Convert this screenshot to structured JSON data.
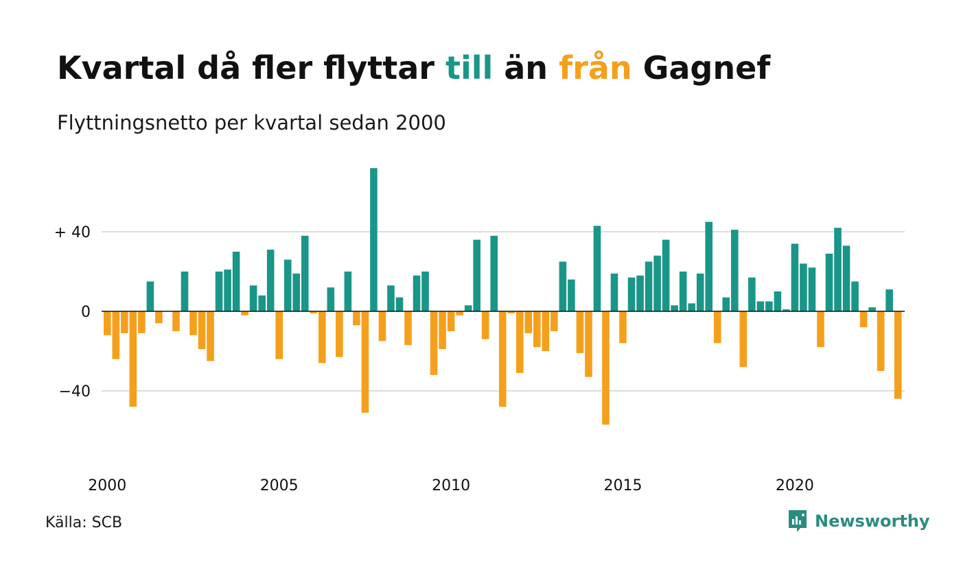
{
  "title": {
    "part1": "Kvartal då fler flyttar ",
    "highlight_in": "till",
    "part2": " än ",
    "highlight_out": "från",
    "part3": " Gagnef"
  },
  "subtitle": "Flyttningsnetto per kvartal sedan 2000",
  "source": "Källa: SCB",
  "brand": "Newsworthy",
  "colors": {
    "positive": "#1a9688",
    "negative": "#f5a01d",
    "grid": "#dddddd",
    "zero_line": "#111111",
    "brand": "#2a8c80"
  },
  "chart_data": {
    "type": "bar",
    "xlabel": "",
    "ylabel": "",
    "ylim": [
      -68,
      72
    ],
    "y_ticks": [
      {
        "value": 40,
        "label": "+ 40"
      },
      {
        "value": 0,
        "label": "0"
      },
      {
        "value": -40,
        "label": "−40"
      }
    ],
    "x_ticks": [
      "2000",
      "2005",
      "2010",
      "2015",
      "2020"
    ],
    "start_year": 2000,
    "grid": true,
    "values": [
      -12,
      -24,
      -11,
      -48,
      -11,
      15,
      -6,
      0,
      -10,
      20,
      -12,
      -19,
      -25,
      20,
      21,
      30,
      -2,
      13,
      8,
      31,
      -24,
      26,
      19,
      38,
      -1,
      -26,
      12,
      -23,
      20,
      -7,
      -51,
      72,
      -15,
      13,
      7,
      -17,
      18,
      20,
      -32,
      -19,
      -10,
      -2,
      3,
      36,
      -14,
      38,
      -48,
      -1,
      -31,
      -11,
      -18,
      -20,
      -10,
      25,
      16,
      -21,
      -33,
      43,
      -57,
      19,
      -16,
      17,
      18,
      25,
      28,
      36,
      3,
      20,
      4,
      19,
      45,
      -16,
      7,
      41,
      -28,
      17,
      5,
      5,
      10,
      1,
      34,
      24,
      22,
      -18,
      29,
      42,
      33,
      15,
      -8,
      2,
      -30,
      11,
      -44
    ]
  }
}
